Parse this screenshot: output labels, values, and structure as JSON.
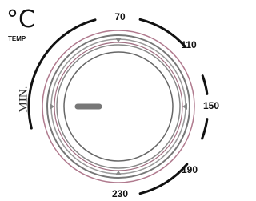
{
  "unit": "°C",
  "unit_caption": "TEMP",
  "min_label": "MIN.",
  "scale": {
    "labels": [
      "70",
      "110",
      "150",
      "190",
      "230"
    ]
  }
}
